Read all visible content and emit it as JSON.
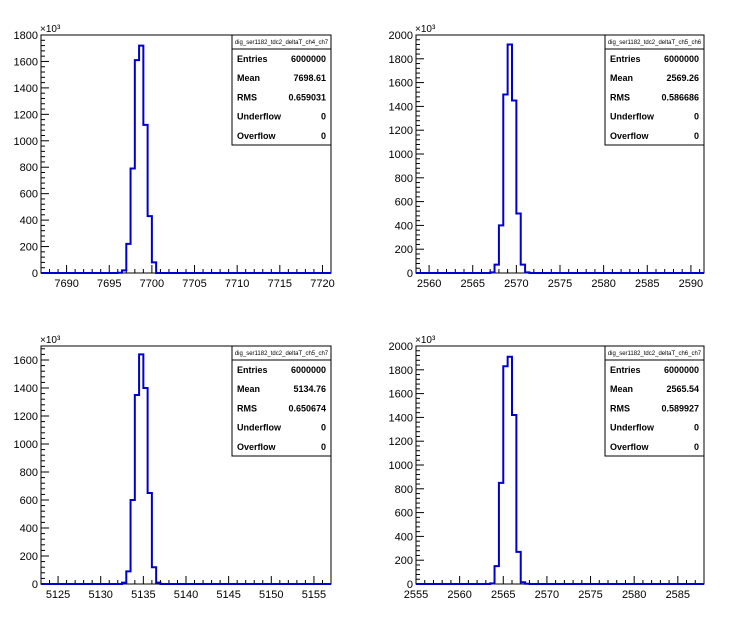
{
  "chart_data": [
    {
      "type": "bar",
      "title": "",
      "xlabel": "",
      "ylabel": "",
      "y_multiplier": "×10³",
      "xlim": [
        7687,
        7721
      ],
      "ylim": [
        0,
        1800
      ],
      "xticks": [
        "7690",
        "7695",
        "7700",
        "7705",
        "7710",
        "7715",
        "7720"
      ],
      "yticks": [
        "0",
        "200",
        "400",
        "600",
        "800",
        "1000",
        "1200",
        "1400",
        "1600",
        "1800"
      ],
      "bin_width": 0.5,
      "bin_edges": [
        7696.0,
        7696.5,
        7697.0,
        7697.5,
        7698.0,
        7698.5,
        7699.0,
        7699.5,
        7700.0,
        7700.5
      ],
      "values": [
        2,
        20,
        220,
        790,
        1610,
        1720,
        1120,
        430,
        80
      ],
      "stats": {
        "name": "dig_ser1182_tdc2_deltaT_ch4_ch7",
        "rows": [
          {
            "label": "Entries",
            "value": "6000000"
          },
          {
            "label": "Mean",
            "value": "7698.61"
          },
          {
            "label": "RMS",
            "value": "0.659031"
          },
          {
            "label": "Underflow",
            "value": "0"
          },
          {
            "label": "Overflow",
            "value": "0"
          }
        ]
      }
    },
    {
      "type": "bar",
      "title": "",
      "xlabel": "",
      "ylabel": "",
      "y_multiplier": "×10³",
      "xlim": [
        2558.5,
        2591.5
      ],
      "ylim": [
        0,
        2000
      ],
      "xticks": [
        "2560",
        "2565",
        "2570",
        "2575",
        "2580",
        "2585",
        "2590"
      ],
      "yticks": [
        "0",
        "200",
        "400",
        "600",
        "800",
        "1000",
        "1200",
        "1400",
        "1600",
        "1800",
        "2000"
      ],
      "bin_width": 0.5,
      "bin_edges": [
        2567.0,
        2567.5,
        2568.0,
        2568.5,
        2569.0,
        2569.5,
        2570.0,
        2570.5,
        2571.0,
        2571.5
      ],
      "values": [
        5,
        70,
        400,
        1500,
        1920,
        1450,
        500,
        70,
        5
      ],
      "stats": {
        "name": "dig_ser1182_tdc2_deltaT_ch5_ch6",
        "rows": [
          {
            "label": "Entries",
            "value": "6000000"
          },
          {
            "label": "Mean",
            "value": "2569.26"
          },
          {
            "label": "RMS",
            "value": "0.586686"
          },
          {
            "label": "Underflow",
            "value": "0"
          },
          {
            "label": "Overflow",
            "value": "0"
          }
        ]
      }
    },
    {
      "type": "bar",
      "title": "",
      "xlabel": "",
      "ylabel": "",
      "y_multiplier": "×10³",
      "xlim": [
        5123,
        5157
      ],
      "ylim": [
        0,
        1700
      ],
      "xticks": [
        "5125",
        "5130",
        "5135",
        "5140",
        "5145",
        "5150",
        "5155"
      ],
      "yticks": [
        "0",
        "200",
        "400",
        "600",
        "800",
        "1000",
        "1200",
        "1400",
        "1600"
      ],
      "bin_width": 0.5,
      "bin_edges": [
        5132.5,
        5133.0,
        5133.5,
        5134.0,
        5134.5,
        5135.0,
        5135.5,
        5136.0,
        5136.5,
        5137.0
      ],
      "values": [
        10,
        90,
        600,
        1350,
        1640,
        1400,
        650,
        120,
        10
      ],
      "stats": {
        "name": "dig_ser1182_tdc2_deltaT_ch5_ch7",
        "rows": [
          {
            "label": "Entries",
            "value": "6000000"
          },
          {
            "label": "Mean",
            "value": "5134.76"
          },
          {
            "label": "RMS",
            "value": "0.650674"
          },
          {
            "label": "Underflow",
            "value": "0"
          },
          {
            "label": "Overflow",
            "value": "0"
          }
        ]
      }
    },
    {
      "type": "bar",
      "title": "",
      "xlabel": "",
      "ylabel": "",
      "y_multiplier": "×10³",
      "xlim": [
        2555,
        2588
      ],
      "ylim": [
        0,
        2000
      ],
      "xticks": [
        "2555",
        "2560",
        "2565",
        "2570",
        "2575",
        "2580",
        "2585"
      ],
      "yticks": [
        "0",
        "200",
        "400",
        "600",
        "800",
        "1000",
        "1200",
        "1400",
        "1600",
        "1800",
        "2000"
      ],
      "bin_width": 0.5,
      "bin_edges": [
        2563.5,
        2564.0,
        2564.5,
        2565.0,
        2565.5,
        2566.0,
        2566.5,
        2567.0,
        2567.5,
        2568.0
      ],
      "values": [
        5,
        150,
        850,
        1830,
        1910,
        1420,
        270,
        15,
        2
      ],
      "stats": {
        "name": "dig_ser1182_tdc2_deltaT_ch6_ch7",
        "rows": [
          {
            "label": "Entries",
            "value": "6000000"
          },
          {
            "label": "Mean",
            "value": "2565.54"
          },
          {
            "label": "RMS",
            "value": "0.589927"
          },
          {
            "label": "Underflow",
            "value": "0"
          },
          {
            "label": "Overflow",
            "value": "0"
          }
        ]
      }
    }
  ]
}
